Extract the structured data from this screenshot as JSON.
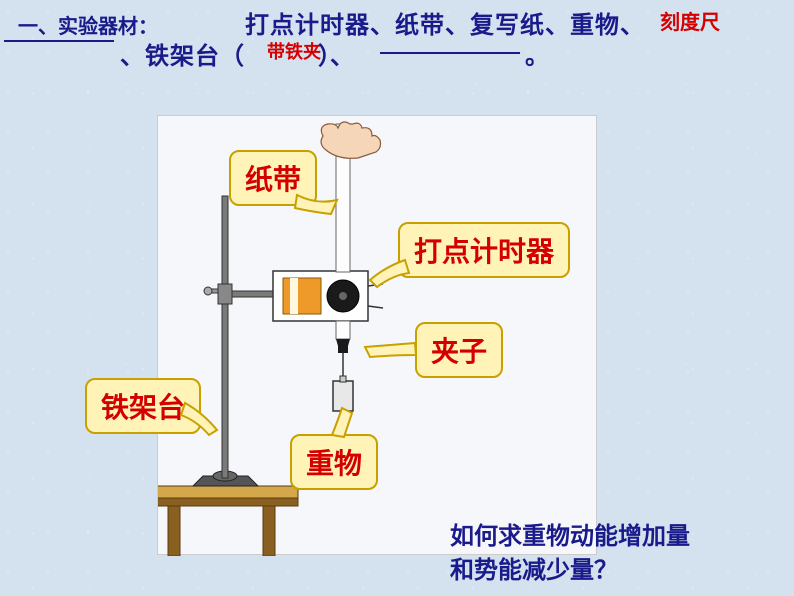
{
  "header": {
    "section_label": "一、实验器材：",
    "line1_blue": "打点计时器、纸带、复写纸、重物、",
    "red_overlap1": "刻度尺",
    "line2_blue_a": "、铁架台（",
    "red_overlap2": "带铁夹",
    "line2_blue_b": "）、",
    "line2_blue_c": "。"
  },
  "callouts": {
    "paper_tape": "纸带",
    "timer": "打点计时器",
    "clamp": "夹子",
    "weight": "重物",
    "iron_stand": "铁架台"
  },
  "question": "如何求重物动能增加量和势能减少量？",
  "colors": {
    "bg": "#d4e2f0",
    "blue_text": "#1a1a8a",
    "red_text": "#d40000",
    "callout_bg": "#fff3b8",
    "callout_border": "#c8a000",
    "diagram_bg": "#f5f7fb",
    "table_top": "#d4a84a",
    "table_side": "#8a6020",
    "stand_rod": "#6a6a6a",
    "timer_body": "#ed9a2a",
    "hand_fill": "#f6d6b8"
  }
}
